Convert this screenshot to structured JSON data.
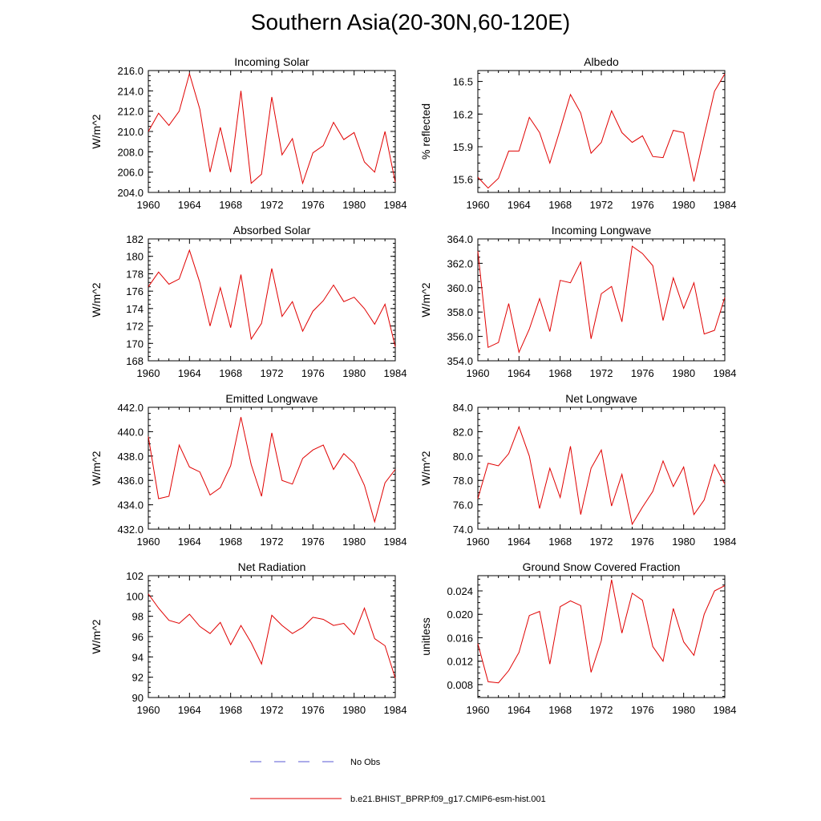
{
  "page": {
    "title": "Southern Asia(20-30N,60-120E)"
  },
  "legend": {
    "items": [
      {
        "label": "No Obs",
        "color": "#5a5ad6",
        "dash": true
      },
      {
        "label": "b.e21.BHIST_BPRP.f09_g17.CMIP6-esm-hist.001",
        "color": "#e00000",
        "dash": false
      }
    ]
  },
  "chart_data": [
    {
      "type": "line",
      "title": "Incoming Solar",
      "ylabel": "W/m^2",
      "xlim": [
        1960,
        1984
      ],
      "ylim": [
        204,
        216
      ],
      "yticks": [
        204,
        206,
        208,
        210,
        212,
        214,
        216
      ],
      "ydecimals": 1,
      "xticks": [
        1960,
        1964,
        1968,
        1972,
        1976,
        1980,
        1984
      ],
      "series": [
        {
          "color": "#e00000",
          "x": [
            1960,
            1961,
            1962,
            1963,
            1964,
            1965,
            1966,
            1967,
            1968,
            1969,
            1970,
            1971,
            1972,
            1973,
            1974,
            1975,
            1976,
            1977,
            1978,
            1979,
            1980,
            1981,
            1982,
            1983,
            1984
          ],
          "values": [
            210.0,
            211.8,
            210.6,
            212.0,
            215.7,
            212.2,
            206.0,
            210.4,
            206.0,
            214.0,
            204.9,
            205.8,
            213.4,
            207.7,
            209.3,
            204.9,
            207.9,
            208.6,
            210.9,
            209.2,
            209.9,
            207.0,
            206.0,
            210.0,
            205.0
          ]
        }
      ]
    },
    {
      "type": "line",
      "title": "Albedo",
      "ylabel": "% reflected",
      "xlim": [
        1960,
        1984
      ],
      "ylim": [
        15.48,
        16.6
      ],
      "yticks": [
        15.6,
        15.9,
        16.2,
        16.5
      ],
      "ydecimals": 1,
      "xticks": [
        1960,
        1964,
        1968,
        1972,
        1976,
        1980,
        1984
      ],
      "series": [
        {
          "color": "#e00000",
          "x": [
            1960,
            1961,
            1962,
            1963,
            1964,
            1965,
            1966,
            1967,
            1968,
            1969,
            1970,
            1971,
            1972,
            1973,
            1974,
            1975,
            1976,
            1977,
            1978,
            1979,
            1980,
            1981,
            1982,
            1983,
            1984
          ],
          "values": [
            15.62,
            15.52,
            15.61,
            15.86,
            15.86,
            16.17,
            16.03,
            15.75,
            16.06,
            16.38,
            16.21,
            15.84,
            15.94,
            16.23,
            16.03,
            15.94,
            16.0,
            15.81,
            15.8,
            16.05,
            16.03,
            15.58,
            16.0,
            16.41,
            16.57
          ]
        }
      ]
    },
    {
      "type": "line",
      "title": "Absorbed Solar",
      "ylabel": "W/m^2",
      "xlim": [
        1960,
        1984
      ],
      "ylim": [
        168,
        182
      ],
      "yticks": [
        168,
        170,
        172,
        174,
        176,
        178,
        180,
        182
      ],
      "ydecimals": 0,
      "xticks": [
        1960,
        1964,
        1968,
        1972,
        1976,
        1980,
        1984
      ],
      "series": [
        {
          "color": "#e00000",
          "x": [
            1960,
            1961,
            1962,
            1963,
            1964,
            1965,
            1966,
            1967,
            1968,
            1969,
            1970,
            1971,
            1972,
            1973,
            1974,
            1975,
            1976,
            1977,
            1978,
            1979,
            1980,
            1981,
            1982,
            1983,
            1984
          ],
          "values": [
            176.5,
            178.2,
            176.8,
            177.4,
            180.7,
            177.0,
            172.0,
            176.4,
            171.8,
            177.9,
            170.5,
            172.3,
            178.6,
            173.1,
            174.8,
            171.4,
            173.7,
            174.9,
            176.7,
            174.8,
            175.3,
            174.0,
            172.2,
            174.5,
            169.6
          ]
        }
      ]
    },
    {
      "type": "line",
      "title": "Incoming Longwave",
      "ylabel": "W/m^2",
      "xlim": [
        1960,
        1984
      ],
      "ylim": [
        354,
        364
      ],
      "yticks": [
        354,
        356,
        358,
        360,
        362,
        364
      ],
      "ydecimals": 1,
      "xticks": [
        1960,
        1964,
        1968,
        1972,
        1976,
        1980,
        1984
      ],
      "series": [
        {
          "color": "#e00000",
          "x": [
            1960,
            1961,
            1962,
            1963,
            1964,
            1965,
            1966,
            1967,
            1968,
            1969,
            1970,
            1971,
            1972,
            1973,
            1974,
            1975,
            1976,
            1977,
            1978,
            1979,
            1980,
            1981,
            1982,
            1983,
            1984
          ],
          "values": [
            363.0,
            355.1,
            355.5,
            358.7,
            354.7,
            356.6,
            359.1,
            356.4,
            360.6,
            360.4,
            362.1,
            355.8,
            359.5,
            360.1,
            357.2,
            363.4,
            362.8,
            361.8,
            357.3,
            360.8,
            358.3,
            360.4,
            356.2,
            356.5,
            359.2
          ]
        }
      ]
    },
    {
      "type": "line",
      "title": "Emitted Longwave",
      "ylabel": "W/m^2",
      "xlim": [
        1960,
        1984
      ],
      "ylim": [
        432,
        442
      ],
      "yticks": [
        432,
        434,
        436,
        438,
        440,
        442
      ],
      "ydecimals": 1,
      "xticks": [
        1960,
        1964,
        1968,
        1972,
        1976,
        1980,
        1984
      ],
      "series": [
        {
          "color": "#e00000",
          "x": [
            1960,
            1961,
            1962,
            1963,
            1964,
            1965,
            1966,
            1967,
            1968,
            1969,
            1970,
            1971,
            1972,
            1973,
            1974,
            1975,
            1976,
            1977,
            1978,
            1979,
            1980,
            1981,
            1982,
            1983,
            1984
          ],
          "values": [
            439.6,
            434.5,
            434.7,
            438.9,
            437.1,
            436.7,
            434.8,
            435.4,
            437.2,
            441.2,
            437.3,
            434.7,
            439.9,
            436.0,
            435.7,
            437.8,
            438.5,
            438.9,
            436.9,
            438.2,
            437.4,
            435.6,
            432.6,
            435.8,
            436.9
          ]
        }
      ]
    },
    {
      "type": "line",
      "title": "Net Longwave",
      "ylabel": "W/m^2",
      "xlim": [
        1960,
        1984
      ],
      "ylim": [
        74,
        84
      ],
      "yticks": [
        74,
        76,
        78,
        80,
        82,
        84
      ],
      "ydecimals": 1,
      "xticks": [
        1960,
        1964,
        1968,
        1972,
        1976,
        1980,
        1984
      ],
      "series": [
        {
          "color": "#e00000",
          "x": [
            1960,
            1961,
            1962,
            1963,
            1964,
            1965,
            1966,
            1967,
            1968,
            1969,
            1970,
            1971,
            1972,
            1973,
            1974,
            1975,
            1976,
            1977,
            1978,
            1979,
            1980,
            1981,
            1982,
            1983,
            1984
          ],
          "values": [
            76.5,
            79.4,
            79.2,
            80.2,
            82.4,
            80.0,
            75.7,
            79.0,
            76.6,
            80.8,
            75.2,
            79.0,
            80.5,
            75.9,
            78.5,
            74.4,
            75.8,
            77.1,
            79.6,
            77.5,
            79.1,
            75.2,
            76.4,
            79.3,
            77.7
          ]
        }
      ]
    },
    {
      "type": "line",
      "title": "Net Radiation",
      "ylabel": "W/m^2",
      "xlim": [
        1960,
        1984
      ],
      "ylim": [
        90,
        102
      ],
      "yticks": [
        90,
        92,
        94,
        96,
        98,
        100,
        102
      ],
      "ydecimals": 0,
      "xticks": [
        1960,
        1964,
        1968,
        1972,
        1976,
        1980,
        1984
      ],
      "series": [
        {
          "color": "#e00000",
          "x": [
            1960,
            1961,
            1962,
            1963,
            1964,
            1965,
            1966,
            1967,
            1968,
            1969,
            1970,
            1971,
            1972,
            1973,
            1974,
            1975,
            1976,
            1977,
            1978,
            1979,
            1980,
            1981,
            1982,
            1983,
            1984
          ],
          "values": [
            100.2,
            98.8,
            97.6,
            97.3,
            98.2,
            97.0,
            96.3,
            97.4,
            95.2,
            97.1,
            95.4,
            93.3,
            98.1,
            97.1,
            96.3,
            96.9,
            97.9,
            97.7,
            97.1,
            97.3,
            96.2,
            98.8,
            95.8,
            95.1,
            91.9
          ]
        }
      ]
    },
    {
      "type": "line",
      "title": "Ground Snow Covered Fraction",
      "ylabel": "unitless",
      "xlim": [
        1960,
        1984
      ],
      "ylim": [
        0.0058,
        0.0266
      ],
      "yticks": [
        0.008,
        0.012,
        0.016,
        0.02,
        0.024
      ],
      "ydecimals": 3,
      "xticks": [
        1960,
        1964,
        1968,
        1972,
        1976,
        1980,
        1984
      ],
      "series": [
        {
          "color": "#e00000",
          "x": [
            1960,
            1961,
            1962,
            1963,
            1964,
            1965,
            1966,
            1967,
            1968,
            1969,
            1970,
            1971,
            1972,
            1973,
            1974,
            1975,
            1976,
            1977,
            1978,
            1979,
            1980,
            1981,
            1982,
            1983,
            1984
          ],
          "values": [
            0.015,
            0.0085,
            0.0083,
            0.0104,
            0.0135,
            0.0198,
            0.0205,
            0.0115,
            0.0213,
            0.0223,
            0.0215,
            0.0101,
            0.0155,
            0.0259,
            0.0168,
            0.0236,
            0.0224,
            0.0145,
            0.012,
            0.021,
            0.0153,
            0.013,
            0.02,
            0.024,
            0.0249
          ]
        }
      ]
    }
  ]
}
